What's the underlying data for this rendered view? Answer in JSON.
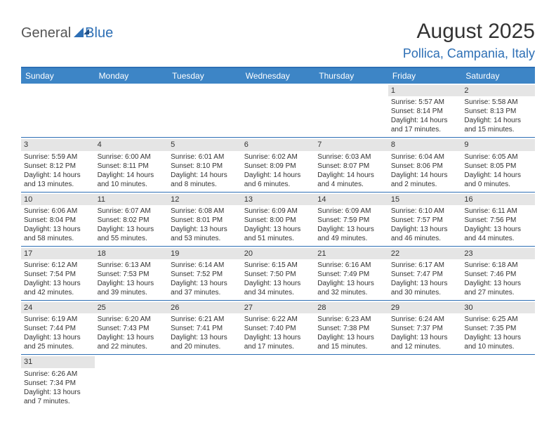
{
  "logo": {
    "part1": "General",
    "part2": "Blue"
  },
  "title": "August 2025",
  "location": "Pollica, Campania, Italy",
  "colors": {
    "header_bg": "#3d85c6",
    "border": "#2d6fb5",
    "daynum_bg": "#e5e5e5",
    "text": "#333333",
    "accent": "#2d6fb5"
  },
  "typography": {
    "title_fontsize": 30,
    "location_fontsize": 18,
    "dow_fontsize": 12,
    "cell_fontsize": 10
  },
  "days_of_week": [
    "Sunday",
    "Monday",
    "Tuesday",
    "Wednesday",
    "Thursday",
    "Friday",
    "Saturday"
  ],
  "weeks": [
    [
      {
        "empty": true
      },
      {
        "empty": true
      },
      {
        "empty": true
      },
      {
        "empty": true
      },
      {
        "empty": true
      },
      {
        "n": "1",
        "sunrise": "Sunrise: 5:57 AM",
        "sunset": "Sunset: 8:14 PM",
        "day1": "Daylight: 14 hours",
        "day2": "and 17 minutes."
      },
      {
        "n": "2",
        "sunrise": "Sunrise: 5:58 AM",
        "sunset": "Sunset: 8:13 PM",
        "day1": "Daylight: 14 hours",
        "day2": "and 15 minutes."
      }
    ],
    [
      {
        "n": "3",
        "sunrise": "Sunrise: 5:59 AM",
        "sunset": "Sunset: 8:12 PM",
        "day1": "Daylight: 14 hours",
        "day2": "and 13 minutes."
      },
      {
        "n": "4",
        "sunrise": "Sunrise: 6:00 AM",
        "sunset": "Sunset: 8:11 PM",
        "day1": "Daylight: 14 hours",
        "day2": "and 10 minutes."
      },
      {
        "n": "5",
        "sunrise": "Sunrise: 6:01 AM",
        "sunset": "Sunset: 8:10 PM",
        "day1": "Daylight: 14 hours",
        "day2": "and 8 minutes."
      },
      {
        "n": "6",
        "sunrise": "Sunrise: 6:02 AM",
        "sunset": "Sunset: 8:09 PM",
        "day1": "Daylight: 14 hours",
        "day2": "and 6 minutes."
      },
      {
        "n": "7",
        "sunrise": "Sunrise: 6:03 AM",
        "sunset": "Sunset: 8:07 PM",
        "day1": "Daylight: 14 hours",
        "day2": "and 4 minutes."
      },
      {
        "n": "8",
        "sunrise": "Sunrise: 6:04 AM",
        "sunset": "Sunset: 8:06 PM",
        "day1": "Daylight: 14 hours",
        "day2": "and 2 minutes."
      },
      {
        "n": "9",
        "sunrise": "Sunrise: 6:05 AM",
        "sunset": "Sunset: 8:05 PM",
        "day1": "Daylight: 14 hours",
        "day2": "and 0 minutes."
      }
    ],
    [
      {
        "n": "10",
        "sunrise": "Sunrise: 6:06 AM",
        "sunset": "Sunset: 8:04 PM",
        "day1": "Daylight: 13 hours",
        "day2": "and 58 minutes."
      },
      {
        "n": "11",
        "sunrise": "Sunrise: 6:07 AM",
        "sunset": "Sunset: 8:02 PM",
        "day1": "Daylight: 13 hours",
        "day2": "and 55 minutes."
      },
      {
        "n": "12",
        "sunrise": "Sunrise: 6:08 AM",
        "sunset": "Sunset: 8:01 PM",
        "day1": "Daylight: 13 hours",
        "day2": "and 53 minutes."
      },
      {
        "n": "13",
        "sunrise": "Sunrise: 6:09 AM",
        "sunset": "Sunset: 8:00 PM",
        "day1": "Daylight: 13 hours",
        "day2": "and 51 minutes."
      },
      {
        "n": "14",
        "sunrise": "Sunrise: 6:09 AM",
        "sunset": "Sunset: 7:59 PM",
        "day1": "Daylight: 13 hours",
        "day2": "and 49 minutes."
      },
      {
        "n": "15",
        "sunrise": "Sunrise: 6:10 AM",
        "sunset": "Sunset: 7:57 PM",
        "day1": "Daylight: 13 hours",
        "day2": "and 46 minutes."
      },
      {
        "n": "16",
        "sunrise": "Sunrise: 6:11 AM",
        "sunset": "Sunset: 7:56 PM",
        "day1": "Daylight: 13 hours",
        "day2": "and 44 minutes."
      }
    ],
    [
      {
        "n": "17",
        "sunrise": "Sunrise: 6:12 AM",
        "sunset": "Sunset: 7:54 PM",
        "day1": "Daylight: 13 hours",
        "day2": "and 42 minutes."
      },
      {
        "n": "18",
        "sunrise": "Sunrise: 6:13 AM",
        "sunset": "Sunset: 7:53 PM",
        "day1": "Daylight: 13 hours",
        "day2": "and 39 minutes."
      },
      {
        "n": "19",
        "sunrise": "Sunrise: 6:14 AM",
        "sunset": "Sunset: 7:52 PM",
        "day1": "Daylight: 13 hours",
        "day2": "and 37 minutes."
      },
      {
        "n": "20",
        "sunrise": "Sunrise: 6:15 AM",
        "sunset": "Sunset: 7:50 PM",
        "day1": "Daylight: 13 hours",
        "day2": "and 34 minutes."
      },
      {
        "n": "21",
        "sunrise": "Sunrise: 6:16 AM",
        "sunset": "Sunset: 7:49 PM",
        "day1": "Daylight: 13 hours",
        "day2": "and 32 minutes."
      },
      {
        "n": "22",
        "sunrise": "Sunrise: 6:17 AM",
        "sunset": "Sunset: 7:47 PM",
        "day1": "Daylight: 13 hours",
        "day2": "and 30 minutes."
      },
      {
        "n": "23",
        "sunrise": "Sunrise: 6:18 AM",
        "sunset": "Sunset: 7:46 PM",
        "day1": "Daylight: 13 hours",
        "day2": "and 27 minutes."
      }
    ],
    [
      {
        "n": "24",
        "sunrise": "Sunrise: 6:19 AM",
        "sunset": "Sunset: 7:44 PM",
        "day1": "Daylight: 13 hours",
        "day2": "and 25 minutes."
      },
      {
        "n": "25",
        "sunrise": "Sunrise: 6:20 AM",
        "sunset": "Sunset: 7:43 PM",
        "day1": "Daylight: 13 hours",
        "day2": "and 22 minutes."
      },
      {
        "n": "26",
        "sunrise": "Sunrise: 6:21 AM",
        "sunset": "Sunset: 7:41 PM",
        "day1": "Daylight: 13 hours",
        "day2": "and 20 minutes."
      },
      {
        "n": "27",
        "sunrise": "Sunrise: 6:22 AM",
        "sunset": "Sunset: 7:40 PM",
        "day1": "Daylight: 13 hours",
        "day2": "and 17 minutes."
      },
      {
        "n": "28",
        "sunrise": "Sunrise: 6:23 AM",
        "sunset": "Sunset: 7:38 PM",
        "day1": "Daylight: 13 hours",
        "day2": "and 15 minutes."
      },
      {
        "n": "29",
        "sunrise": "Sunrise: 6:24 AM",
        "sunset": "Sunset: 7:37 PM",
        "day1": "Daylight: 13 hours",
        "day2": "and 12 minutes."
      },
      {
        "n": "30",
        "sunrise": "Sunrise: 6:25 AM",
        "sunset": "Sunset: 7:35 PM",
        "day1": "Daylight: 13 hours",
        "day2": "and 10 minutes."
      }
    ],
    [
      {
        "n": "31",
        "sunrise": "Sunrise: 6:26 AM",
        "sunset": "Sunset: 7:34 PM",
        "day1": "Daylight: 13 hours",
        "day2": "and 7 minutes."
      },
      {
        "empty": true
      },
      {
        "empty": true
      },
      {
        "empty": true
      },
      {
        "empty": true
      },
      {
        "empty": true
      },
      {
        "empty": true
      }
    ]
  ]
}
